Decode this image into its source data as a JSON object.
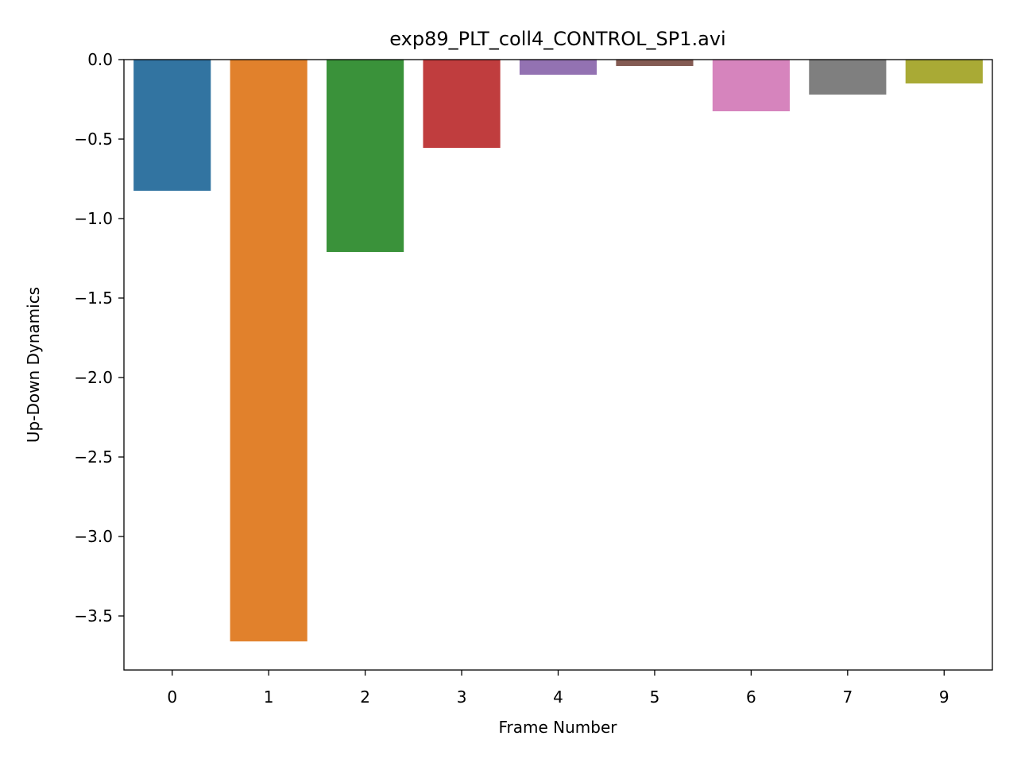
{
  "chart_data": {
    "type": "bar",
    "title": "exp89_PLT_coll4_CONTROL_SP1.avi",
    "xlabel": "Frame Number",
    "ylabel": "Up-Down Dynamics",
    "categories": [
      "0",
      "1",
      "2",
      "3",
      "4",
      "5",
      "6",
      "7",
      "9"
    ],
    "values": [
      -0.825,
      -3.66,
      -1.21,
      -0.555,
      -0.095,
      -0.04,
      -0.325,
      -0.22,
      -0.15
    ],
    "colors": [
      "#3274a1",
      "#e1812c",
      "#3a923a",
      "#c03d3e",
      "#9372b2",
      "#845b53",
      "#d684bd",
      "#7f7f7f",
      "#a9aa35"
    ],
    "ylim": [
      -3.84,
      0.0
    ],
    "yticks": [
      0.0,
      -0.5,
      -1.0,
      -1.5,
      -2.0,
      -2.5,
      -3.0,
      -3.5
    ],
    "ytick_labels": [
      "0.0",
      "−0.5",
      "−1.0",
      "−1.5",
      "−2.0",
      "−2.5",
      "−3.0",
      "−3.5"
    ],
    "grid": false,
    "legend": "none"
  }
}
